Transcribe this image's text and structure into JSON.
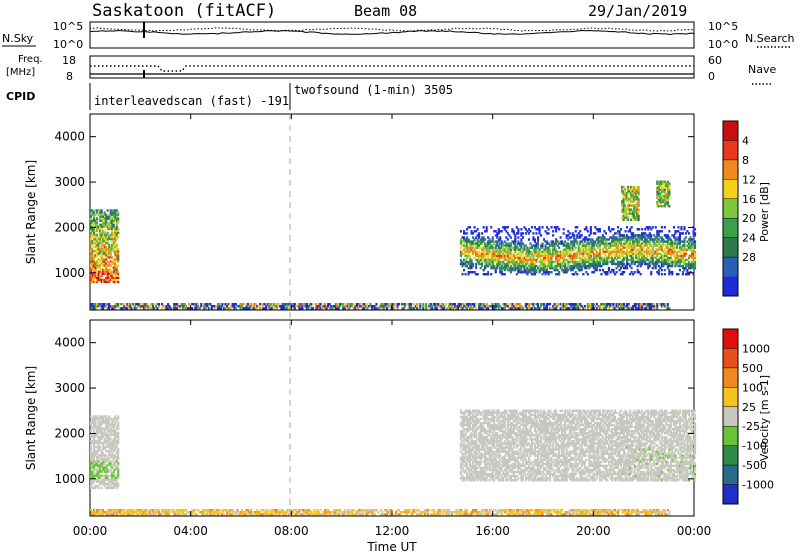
{
  "header": {
    "station": "Saskatoon (fitACF)",
    "beam": "Beam 08",
    "date": "29/Jan/2019"
  },
  "status_panels": {
    "nsky_label": "N.Sky",
    "nsky_ticks": [
      "10^5",
      "10^0"
    ],
    "nsearch_label": "N.Search",
    "nsearch_ticks": [
      "10^5",
      "10^0"
    ],
    "freq_label_1": "Freq.",
    "freq_label_2": "[MHz]",
    "freq_ticks": [
      "18",
      "8"
    ],
    "nave_label": "Nave",
    "nave_ticks": [
      "60",
      "0"
    ],
    "cpid_label": "CPID",
    "cpid_modes": [
      {
        "name": "interleavedscan (fast) -191",
        "start_hour": 0,
        "end_hour": 8.0
      },
      {
        "name": "twofsound (1-min) 3505",
        "start_hour": 8.0,
        "end_hour": 24
      }
    ]
  },
  "x_axis": {
    "label": "Time UT",
    "ticks": [
      "00:00",
      "04:00",
      "08:00",
      "12:00",
      "16:00",
      "20:00",
      "00:00"
    ],
    "range_hours": [
      0,
      24
    ]
  },
  "chart_data": [
    {
      "type": "heatmap",
      "title": "Power",
      "ylabel": "Slant Range [km]",
      "ylim": [
        180,
        4500
      ],
      "yticks": [
        "1000",
        "2000",
        "3000",
        "4000"
      ],
      "x_range_hours": [
        0,
        24
      ],
      "colorbar": {
        "label": "Power [dB]",
        "ticks": [
          "4",
          "8",
          "12",
          "16",
          "20",
          "24",
          "28"
        ],
        "colors": [
          "#1e2bd6",
          "#2a5fb8",
          "#2e7a4c",
          "#3aa04a",
          "#7fc63a",
          "#f2d21a",
          "#f08a1e",
          "#e83a1a",
          "#c80e0e"
        ]
      },
      "regions": [
        {
          "t": [
            0.0,
            1.1
          ],
          "r": [
            780,
            2400
          ],
          "desc": "early echo"
        },
        {
          "t": [
            14.7,
            24.0
          ],
          "r": [
            950,
            2000
          ],
          "desc": "main band"
        },
        {
          "t": [
            0.0,
            23.0
          ],
          "r": [
            200,
            330
          ],
          "desc": "near range"
        },
        {
          "t": [
            21.1,
            21.8
          ],
          "r": [
            2150,
            2900
          ]
        },
        {
          "t": [
            22.5,
            23.0
          ],
          "r": [
            2450,
            3000
          ]
        }
      ]
    },
    {
      "type": "heatmap",
      "title": "Velocity",
      "ylabel": "Slant Range [km]",
      "ylim": [
        180,
        4500
      ],
      "yticks": [
        "1000",
        "2000",
        "3000",
        "4000"
      ],
      "x_range_hours": [
        0,
        24
      ],
      "colorbar": {
        "label": "Velocity [m s-1]",
        "ticks": [
          "1000",
          "500",
          "100",
          "25",
          "-25",
          "-100",
          "-500",
          "-1000"
        ],
        "colors": [
          "#1e30c8",
          "#2a6a8a",
          "#2f8a4a",
          "#6ac23a",
          "#c8c8c0",
          "#f6c21e",
          "#f08a1e",
          "#e8501a",
          "#e00e0e"
        ]
      },
      "regions": [
        {
          "t": [
            0.0,
            1.1
          ],
          "r": [
            780,
            2400
          ],
          "desc": "grey/green"
        },
        {
          "t": [
            14.7,
            24.0
          ],
          "r": [
            950,
            2500
          ],
          "desc": "grey band"
        },
        {
          "t": [
            0.0,
            23.0
          ],
          "r": [
            200,
            330
          ],
          "desc": "ground scatter"
        }
      ]
    }
  ]
}
